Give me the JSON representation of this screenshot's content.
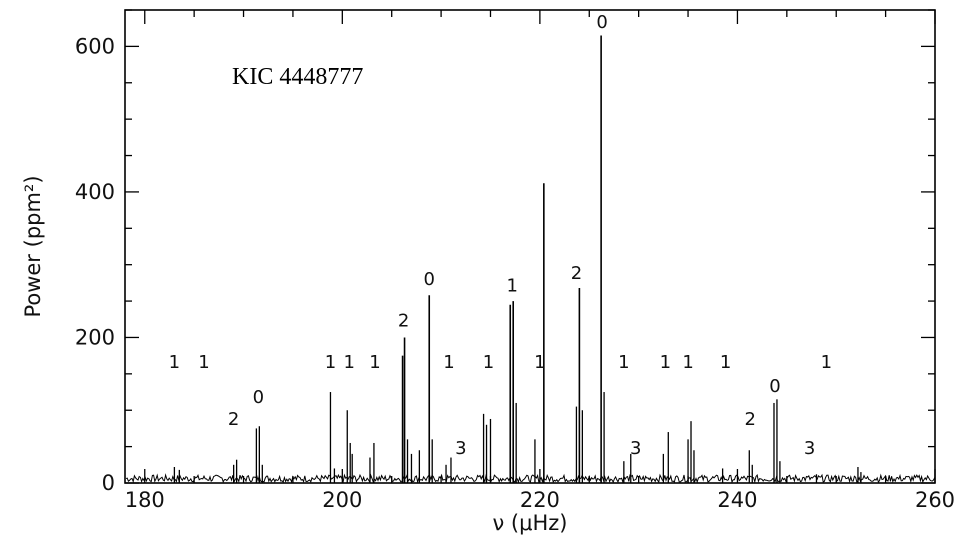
{
  "chart_data": {
    "type": "line",
    "title": "",
    "annotation": "KIC 4448777",
    "xlabel": "ν  (μHz)",
    "ylabel": "Power  (ppm²)",
    "xlim": [
      178,
      260
    ],
    "ylim": [
      0,
      650
    ],
    "xticks": [
      180,
      200,
      220,
      240,
      260
    ],
    "yticks": [
      0,
      200,
      400,
      600
    ],
    "grid": false,
    "color": "#000000",
    "peaks": [
      {
        "x": 183.0,
        "y": 22
      },
      {
        "x": 183.5,
        "y": 18
      },
      {
        "x": 189.0,
        "y": 25
      },
      {
        "x": 189.3,
        "y": 32
      },
      {
        "x": 191.3,
        "y": 75
      },
      {
        "x": 191.6,
        "y": 78
      },
      {
        "x": 191.9,
        "y": 25
      },
      {
        "x": 198.8,
        "y": 125
      },
      {
        "x": 199.2,
        "y": 20
      },
      {
        "x": 200.5,
        "y": 100
      },
      {
        "x": 200.8,
        "y": 55
      },
      {
        "x": 201.0,
        "y": 40
      },
      {
        "x": 202.8,
        "y": 35
      },
      {
        "x": 203.2,
        "y": 55
      },
      {
        "x": 206.1,
        "y": 175
      },
      {
        "x": 206.3,
        "y": 200
      },
      {
        "x": 206.6,
        "y": 60
      },
      {
        "x": 207.0,
        "y": 40
      },
      {
        "x": 207.8,
        "y": 45
      },
      {
        "x": 208.8,
        "y": 258
      },
      {
        "x": 209.1,
        "y": 60
      },
      {
        "x": 210.5,
        "y": 25
      },
      {
        "x": 211.0,
        "y": 35
      },
      {
        "x": 214.3,
        "y": 95
      },
      {
        "x": 214.6,
        "y": 80
      },
      {
        "x": 215.0,
        "y": 88
      },
      {
        "x": 217.0,
        "y": 245
      },
      {
        "x": 217.3,
        "y": 250
      },
      {
        "x": 217.6,
        "y": 110
      },
      {
        "x": 219.5,
        "y": 60
      },
      {
        "x": 220.4,
        "y": 412
      },
      {
        "x": 223.7,
        "y": 105
      },
      {
        "x": 224.0,
        "y": 268
      },
      {
        "x": 224.3,
        "y": 100
      },
      {
        "x": 226.2,
        "y": 615
      },
      {
        "x": 226.5,
        "y": 125
      },
      {
        "x": 228.5,
        "y": 30
      },
      {
        "x": 229.2,
        "y": 40
      },
      {
        "x": 232.5,
        "y": 40
      },
      {
        "x": 233.0,
        "y": 70
      },
      {
        "x": 235.0,
        "y": 60
      },
      {
        "x": 235.3,
        "y": 85
      },
      {
        "x": 235.6,
        "y": 45
      },
      {
        "x": 238.5,
        "y": 20
      },
      {
        "x": 241.2,
        "y": 45
      },
      {
        "x": 241.5,
        "y": 25
      },
      {
        "x": 243.7,
        "y": 110
      },
      {
        "x": 244.0,
        "y": 115
      },
      {
        "x": 244.3,
        "y": 30
      },
      {
        "x": 248.0,
        "y": 12
      },
      {
        "x": 252.2,
        "y": 22
      },
      {
        "x": 252.5,
        "y": 15
      }
    ],
    "mode_labels": [
      {
        "x": 183.0,
        "y": 158,
        "text": "1"
      },
      {
        "x": 186.0,
        "y": 158,
        "text": "1"
      },
      {
        "x": 189.0,
        "y": 80,
        "text": "2"
      },
      {
        "x": 191.5,
        "y": 110,
        "text": "0"
      },
      {
        "x": 198.8,
        "y": 158,
        "text": "1"
      },
      {
        "x": 200.7,
        "y": 158,
        "text": "1"
      },
      {
        "x": 203.3,
        "y": 158,
        "text": "1"
      },
      {
        "x": 206.2,
        "y": 215,
        "text": "2"
      },
      {
        "x": 208.8,
        "y": 272,
        "text": "0"
      },
      {
        "x": 210.8,
        "y": 158,
        "text": "1"
      },
      {
        "x": 212.0,
        "y": 40,
        "text": "3"
      },
      {
        "x": 214.8,
        "y": 158,
        "text": "1"
      },
      {
        "x": 217.2,
        "y": 263,
        "text": "1"
      },
      {
        "x": 220.0,
        "y": 158,
        "text": "1"
      },
      {
        "x": 223.7,
        "y": 280,
        "text": "2"
      },
      {
        "x": 226.3,
        "y": 625,
        "text": "0"
      },
      {
        "x": 228.5,
        "y": 158,
        "text": "1"
      },
      {
        "x": 229.7,
        "y": 40,
        "text": "3"
      },
      {
        "x": 232.7,
        "y": 158,
        "text": "1"
      },
      {
        "x": 235.0,
        "y": 158,
        "text": "1"
      },
      {
        "x": 238.8,
        "y": 158,
        "text": "1"
      },
      {
        "x": 241.3,
        "y": 80,
        "text": "2"
      },
      {
        "x": 243.8,
        "y": 125,
        "text": "0"
      },
      {
        "x": 247.3,
        "y": 40,
        "text": "3"
      },
      {
        "x": 249.0,
        "y": 158,
        "text": "1"
      }
    ]
  }
}
